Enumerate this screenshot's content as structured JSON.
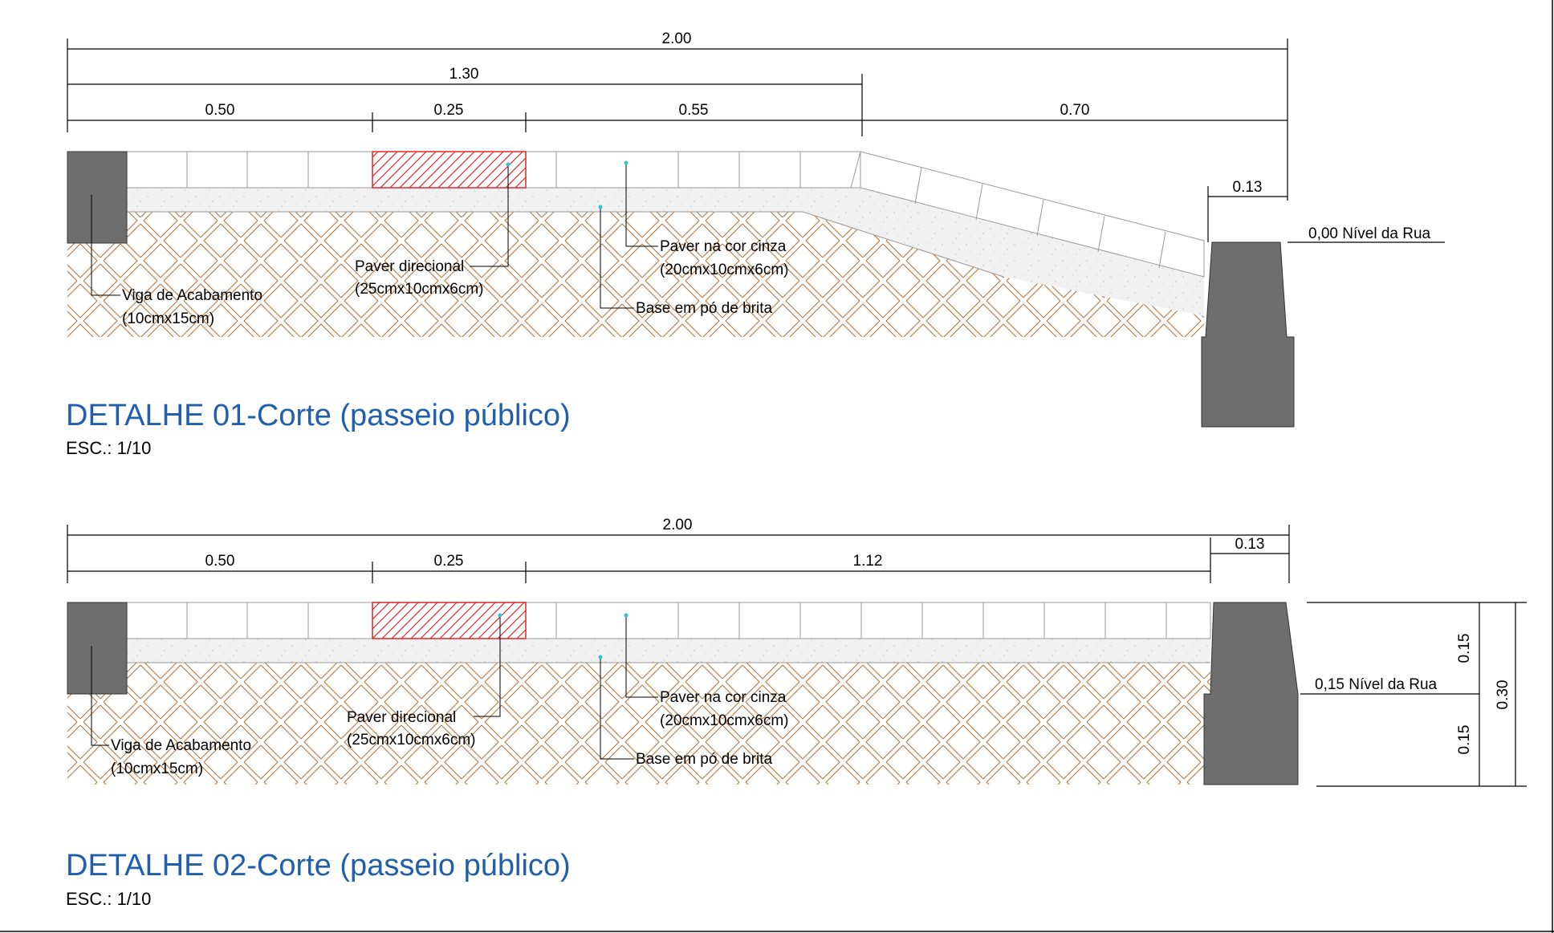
{
  "colors": {
    "title": "#1f5fae",
    "concrete": "#6e6e6e",
    "directional_paver": "#e0272a",
    "soil_hatch": "#b6733a",
    "leader_dot": "#2ec4d6"
  },
  "detail1": {
    "title": "DETALHE 01-Corte (passeio público)",
    "scale": "ESC.: 1/10",
    "dimensions": {
      "total": "2.00",
      "sub": "1.30",
      "d1": "0.50",
      "d2": "0.25",
      "d3": "0.55",
      "d4": "0.70",
      "curb": "0.13"
    },
    "street_level": "0,00 Nível da Rua",
    "labels": {
      "viga_1": "Viga de Acabamento",
      "viga_2": "(10cmx15cm)",
      "direcional_1": "Paver direcional",
      "direcional_2": "(25cmx10cmx6cm)",
      "cinza_1": "Paver na cor cinza",
      "cinza_2": "(20cmx10cmx6cm)",
      "base": "Base em pó de brita"
    }
  },
  "detail2": {
    "title": "DETALHE 02-Corte (passeio público)",
    "scale": "ESC.: 1/10",
    "dimensions": {
      "total": "2.00",
      "d1": "0.50",
      "d2": "0.25",
      "d3": "1.12",
      "curb": "0.13",
      "h_top": "0.15",
      "h_bottom": "0.15",
      "h_total": "0.30"
    },
    "street_level": "0,15 Nível da Rua",
    "labels": {
      "viga_1": "Viga de Acabamento",
      "viga_2": "(10cmx15cm)",
      "direcional_1": "Paver direcional",
      "direcional_2": "(25cmx10cmx6cm)",
      "cinza_1": "Paver na cor cinza",
      "cinza_2": "(20cmx10cmx6cm)",
      "base": "Base em pó de brita"
    }
  }
}
